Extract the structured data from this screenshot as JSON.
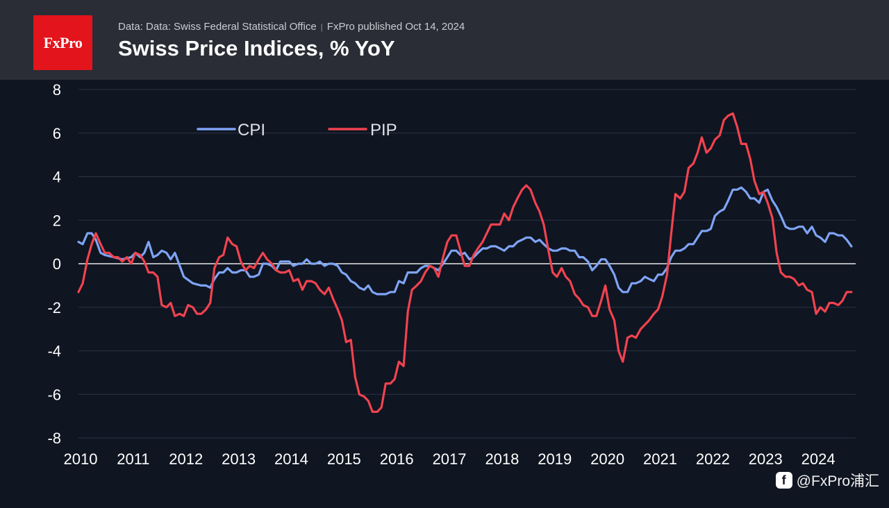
{
  "header": {
    "logo_text": "FxPro",
    "source_text": "Data: Data: Swiss Federal Statistical Office",
    "published_text": "FxPro published Oct 14, 2024",
    "title": "Swiss Price Indices, % YoY"
  },
  "watermark": {
    "icon": "f",
    "text": "@FxPro浦汇"
  },
  "colors": {
    "cpi": "#7fa4f5",
    "pip": "#f0434f",
    "background": "#0f1521",
    "header": "#2a2d36",
    "grid": "#2c3446",
    "zero": "#e8e8e8",
    "brand": "#e3141b"
  },
  "chart_data": {
    "type": "line",
    "title": "Swiss Price Indices, % YoY",
    "xlabel": "",
    "ylabel": "",
    "xlim": [
      2010.0,
      2024.75
    ],
    "ylim": [
      -8,
      8
    ],
    "yticks": [
      8,
      6,
      4,
      2,
      0,
      -2,
      -4,
      -6,
      -8
    ],
    "xticks": [
      2010,
      2011,
      2012,
      2013,
      2014,
      2015,
      2016,
      2017,
      2018,
      2019,
      2020,
      2021,
      2022,
      2023,
      2024
    ],
    "legend": "top-left",
    "series": [
      {
        "name": "CPI",
        "x": [
          2010.0,
          2010.08,
          2010.17,
          2010.25,
          2010.33,
          2010.42,
          2010.5,
          2010.67,
          2010.83,
          2011.0,
          2011.08,
          2011.17,
          2011.25,
          2011.33,
          2011.42,
          2011.5,
          2011.58,
          2011.67,
          2011.75,
          2011.83,
          2012.0,
          2012.17,
          2012.33,
          2012.42,
          2012.5,
          2012.58,
          2012.67,
          2012.75,
          2012.83,
          2012.92,
          2013.0,
          2013.08,
          2013.17,
          2013.25,
          2013.33,
          2013.42,
          2013.5,
          2013.58,
          2013.67,
          2013.75,
          2013.83,
          2013.92,
          2014.0,
          2014.08,
          2014.17,
          2014.25,
          2014.33,
          2014.42,
          2014.5,
          2014.58,
          2014.67,
          2014.75,
          2014.83,
          2014.92,
          2015.0,
          2015.08,
          2015.17,
          2015.25,
          2015.33,
          2015.42,
          2015.5,
          2015.58,
          2015.67,
          2015.75,
          2015.83,
          2015.92,
          2016.0,
          2016.08,
          2016.17,
          2016.25,
          2016.33,
          2016.42,
          2016.5,
          2016.58,
          2016.67,
          2016.75,
          2016.83,
          2016.92,
          2017.0,
          2017.08,
          2017.17,
          2017.25,
          2017.33,
          2017.42,
          2017.5,
          2017.58,
          2017.67,
          2017.75,
          2017.83,
          2017.92,
          2018.0,
          2018.08,
          2018.17,
          2018.25,
          2018.33,
          2018.42,
          2018.5,
          2018.58,
          2018.67,
          2018.75,
          2018.83,
          2018.92,
          2019.0,
          2019.08,
          2019.17,
          2019.25,
          2019.33,
          2019.42,
          2019.5,
          2019.58,
          2019.67,
          2019.75,
          2019.83,
          2019.92,
          2020.0,
          2020.08,
          2020.17,
          2020.25,
          2020.33,
          2020.42,
          2020.5,
          2020.58,
          2020.67,
          2020.75,
          2020.83,
          2020.92,
          2021.0,
          2021.08,
          2021.17,
          2021.25,
          2021.33,
          2021.42,
          2021.5,
          2021.58,
          2021.67,
          2021.75,
          2021.83,
          2021.92,
          2022.0,
          2022.08,
          2022.17,
          2022.25,
          2022.33,
          2022.42,
          2022.5,
          2022.58,
          2022.67,
          2022.75,
          2022.83,
          2022.92,
          2023.0,
          2023.08,
          2023.17,
          2023.25,
          2023.33,
          2023.42,
          2023.5,
          2023.58,
          2023.67,
          2023.75,
          2023.83,
          2023.92,
          2024.0,
          2024.08,
          2024.17,
          2024.25,
          2024.33,
          2024.42,
          2024.5,
          2024.58,
          2024.67
        ],
        "values": [
          1.0,
          0.9,
          1.4,
          1.4,
          1.1,
          0.5,
          0.4,
          0.3,
          0.2,
          0.3,
          0.5,
          0.3,
          0.5,
          1.0,
          0.3,
          0.4,
          0.6,
          0.5,
          0.2,
          0.5,
          -0.6,
          -0.9,
          -1.0,
          -1.0,
          -1.1,
          -0.7,
          -0.4,
          -0.4,
          -0.2,
          -0.4,
          -0.4,
          -0.3,
          -0.3,
          -0.6,
          -0.6,
          -0.5,
          0.0,
          0.0,
          -0.1,
          -0.3,
          0.1,
          0.1,
          0.1,
          -0.1,
          0.0,
          0.0,
          0.2,
          0.0,
          0.0,
          0.1,
          -0.1,
          0.0,
          0.0,
          -0.1,
          -0.4,
          -0.5,
          -0.8,
          -0.9,
          -1.1,
          -1.2,
          -1.0,
          -1.3,
          -1.4,
          -1.4,
          -1.4,
          -1.3,
          -1.3,
          -0.8,
          -0.9,
          -0.4,
          -0.4,
          -0.4,
          -0.2,
          -0.1,
          -0.1,
          -0.2,
          -0.3,
          0.0,
          0.3,
          0.6,
          0.6,
          0.4,
          0.5,
          0.2,
          0.3,
          0.5,
          0.7,
          0.7,
          0.8,
          0.8,
          0.7,
          0.6,
          0.8,
          0.8,
          1.0,
          1.1,
          1.2,
          1.2,
          1.0,
          1.1,
          0.9,
          0.7,
          0.6,
          0.6,
          0.7,
          0.7,
          0.6,
          0.6,
          0.3,
          0.3,
          0.1,
          -0.3,
          -0.1,
          0.2,
          0.2,
          -0.1,
          -0.5,
          -1.1,
          -1.3,
          -1.3,
          -0.9,
          -0.9,
          -0.8,
          -0.6,
          -0.7,
          -0.8,
          -0.5,
          -0.5,
          -0.2,
          0.3,
          0.6,
          0.6,
          0.7,
          0.9,
          0.9,
          1.2,
          1.5,
          1.5,
          1.6,
          2.2,
          2.4,
          2.5,
          2.9,
          3.4,
          3.4,
          3.5,
          3.3,
          3.0,
          3.0,
          2.8,
          3.3,
          3.4,
          2.9,
          2.6,
          2.2,
          1.7,
          1.6,
          1.6,
          1.7,
          1.7,
          1.4,
          1.7,
          1.3,
          1.2,
          1.0,
          1.4,
          1.4,
          1.3,
          1.3,
          1.1,
          0.8
        ]
      },
      {
        "name": "PIP",
        "x": [
          2010.0,
          2010.08,
          2010.17,
          2010.25,
          2010.33,
          2010.42,
          2010.5,
          2010.58,
          2010.67,
          2010.75,
          2010.83,
          2010.92,
          2011.0,
          2011.08,
          2011.17,
          2011.25,
          2011.33,
          2011.42,
          2011.5,
          2011.58,
          2011.67,
          2011.75,
          2011.83,
          2011.92,
          2012.0,
          2012.08,
          2012.17,
          2012.25,
          2012.33,
          2012.42,
          2012.5,
          2012.58,
          2012.67,
          2012.75,
          2012.83,
          2012.92,
          2013.0,
          2013.08,
          2013.17,
          2013.25,
          2013.33,
          2013.42,
          2013.5,
          2013.58,
          2013.67,
          2013.75,
          2013.83,
          2013.92,
          2014.0,
          2014.08,
          2014.17,
          2014.25,
          2014.33,
          2014.42,
          2014.5,
          2014.58,
          2014.67,
          2014.75,
          2014.83,
          2014.92,
          2015.0,
          2015.08,
          2015.17,
          2015.25,
          2015.33,
          2015.42,
          2015.5,
          2015.58,
          2015.67,
          2015.75,
          2015.83,
          2015.92,
          2016.0,
          2016.08,
          2016.17,
          2016.25,
          2016.33,
          2016.42,
          2016.5,
          2016.58,
          2016.67,
          2016.75,
          2016.83,
          2016.92,
          2017.0,
          2017.08,
          2017.17,
          2017.25,
          2017.33,
          2017.42,
          2017.5,
          2017.58,
          2017.67,
          2017.75,
          2017.83,
          2017.92,
          2018.0,
          2018.08,
          2018.17,
          2018.25,
          2018.33,
          2018.42,
          2018.5,
          2018.58,
          2018.67,
          2018.75,
          2018.83,
          2018.92,
          2019.0,
          2019.08,
          2019.17,
          2019.25,
          2019.33,
          2019.42,
          2019.5,
          2019.58,
          2019.67,
          2019.75,
          2019.83,
          2019.92,
          2020.0,
          2020.08,
          2020.17,
          2020.25,
          2020.33,
          2020.42,
          2020.5,
          2020.58,
          2020.67,
          2020.75,
          2020.83,
          2020.92,
          2021.0,
          2021.08,
          2021.17,
          2021.25,
          2021.33,
          2021.42,
          2021.5,
          2021.58,
          2021.67,
          2021.75,
          2021.83,
          2021.92,
          2022.0,
          2022.08,
          2022.17,
          2022.25,
          2022.33,
          2022.42,
          2022.5,
          2022.58,
          2022.67,
          2022.75,
          2022.83,
          2022.92,
          2023.0,
          2023.08,
          2023.17,
          2023.25,
          2023.33,
          2023.42,
          2023.5,
          2023.58,
          2023.67,
          2023.75,
          2023.83,
          2023.92,
          2024.0,
          2024.08,
          2024.17,
          2024.25,
          2024.33,
          2024.42,
          2024.5,
          2024.58,
          2024.67
        ],
        "values": [
          -1.3,
          -0.9,
          0.2,
          0.9,
          1.4,
          0.9,
          0.5,
          0.5,
          0.3,
          0.3,
          0.1,
          0.3,
          0.0,
          0.5,
          0.4,
          0.1,
          -0.4,
          -0.4,
          -0.6,
          -1.9,
          -2.0,
          -1.8,
          -2.4,
          -2.3,
          -2.4,
          -1.9,
          -2.0,
          -2.3,
          -2.3,
          -2.1,
          -1.8,
          -0.2,
          0.3,
          0.4,
          1.2,
          0.9,
          0.8,
          0.1,
          -0.3,
          -0.1,
          -0.2,
          0.2,
          0.5,
          0.2,
          0.0,
          -0.3,
          -0.4,
          -0.4,
          -0.3,
          -0.8,
          -0.7,
          -1.2,
          -0.8,
          -0.8,
          -0.9,
          -1.2,
          -1.4,
          -1.1,
          -1.6,
          -2.1,
          -2.6,
          -3.6,
          -3.5,
          -5.2,
          -6.0,
          -6.1,
          -6.3,
          -6.8,
          -6.8,
          -6.6,
          -5.5,
          -5.5,
          -5.3,
          -4.5,
          -4.7,
          -2.2,
          -1.2,
          -1.0,
          -0.8,
          -0.4,
          -0.1,
          -0.2,
          -0.6,
          0.3,
          1.0,
          1.3,
          1.3,
          0.6,
          -0.1,
          -0.1,
          0.4,
          0.7,
          1.0,
          1.4,
          1.8,
          1.8,
          1.8,
          2.3,
          2.0,
          2.6,
          3.0,
          3.4,
          3.6,
          3.4,
          2.8,
          2.4,
          1.8,
          0.6,
          -0.4,
          -0.6,
          -0.2,
          -0.6,
          -0.8,
          -1.4,
          -1.6,
          -1.9,
          -2.0,
          -2.4,
          -2.4,
          -1.7,
          -1.0,
          -2.1,
          -2.6,
          -4.0,
          -4.5,
          -3.4,
          -3.3,
          -3.4,
          -3.0,
          -2.8,
          -2.6,
          -2.3,
          -2.1,
          -1.5,
          -0.5,
          1.4,
          3.2,
          3.0,
          3.3,
          4.4,
          4.6,
          5.1,
          5.8,
          5.1,
          5.3,
          5.7,
          5.9,
          6.6,
          6.8,
          6.9,
          6.3,
          5.5,
          5.5,
          4.8,
          3.8,
          3.2,
          3.3,
          2.8,
          2.1,
          0.5,
          -0.4,
          -0.6,
          -0.6,
          -0.7,
          -1.0,
          -0.9,
          -1.2,
          -1.3,
          -2.3,
          -2.0,
          -2.2,
          -1.8,
          -1.8,
          -1.9,
          -1.7,
          -1.3,
          -1.3
        ]
      }
    ]
  }
}
